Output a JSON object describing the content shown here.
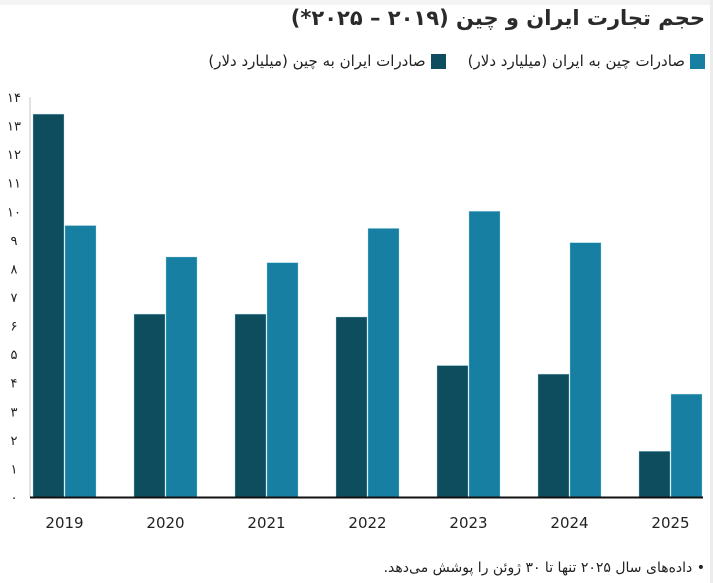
{
  "title": "حجم تجارت ایران و چین (۲۰۱۹ – ۲۰۲۵*)",
  "footnote": "• داده‌های سال ۲۰۲۵ تنها تا ۳۰ ژوئن را پوشش می‌دهد.",
  "colors": {
    "iran_to_china": "#0e4d5e",
    "china_to_iran": "#167fa2",
    "axis": "#111111",
    "yaxis_line": "#d9d9d9"
  },
  "chart_data": {
    "type": "bar",
    "title": "حجم تجارت ایران و چین (۲۰۱۹ – ۲۰۲۵*)",
    "xlabel": "",
    "ylabel": "",
    "categories": [
      "2019",
      "2020",
      "2021",
      "2022",
      "2023",
      "2024",
      "2025"
    ],
    "series": [
      {
        "name": "صادرات ایران به چین (میلیارد دلار)",
        "key": "iran_to_china",
        "values": [
          13.4,
          6.4,
          6.4,
          6.3,
          4.6,
          4.3,
          1.6
        ]
      },
      {
        "name": "صادرات چین به ایران (میلیارد دلار)",
        "key": "china_to_iran",
        "values": [
          9.5,
          8.4,
          8.2,
          9.4,
          10.0,
          8.9,
          3.6
        ]
      }
    ],
    "ylim": [
      0,
      14
    ],
    "yticks": [
      0,
      1,
      2,
      3,
      4,
      5,
      6,
      7,
      8,
      9,
      10,
      11,
      12,
      13,
      14
    ],
    "ytick_labels": [
      "۰",
      "۱",
      "۲",
      "۳",
      "۴",
      "۵",
      "۶",
      "۷",
      "۸",
      "۹",
      "۱۰",
      "۱۱",
      "۱۲",
      "۱۳",
      "۱۴"
    ],
    "grid": false,
    "legend_position": "top-right"
  }
}
